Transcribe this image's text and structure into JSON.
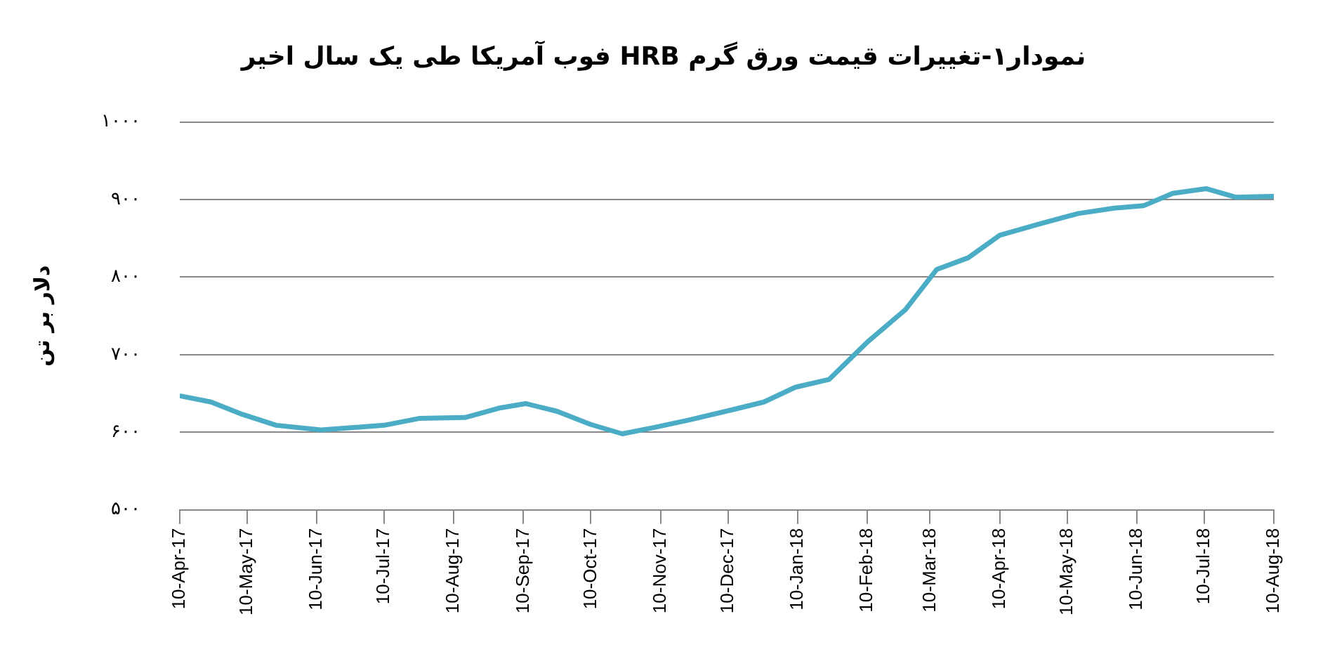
{
  "chart_data": {
    "type": "line",
    "title": "نمودار۱-تغییرات قیمت ورق گرم HRB فوب آمریکا طی یک سال اخیر",
    "ylabel": "دلار بر تن",
    "x": [
      "2017-04-10",
      "2017-04-24",
      "2017-05-08",
      "2017-05-23",
      "2017-06-12",
      "2017-07-10",
      "2017-07-26",
      "2017-08-15",
      "2017-08-30",
      "2017-09-11",
      "2017-09-25",
      "2017-10-10",
      "2017-10-24",
      "2017-11-07",
      "2017-11-23",
      "2017-12-12",
      "2017-12-26",
      "2018-01-09",
      "2018-01-24",
      "2018-02-10",
      "2018-02-27",
      "2018-03-13",
      "2018-03-27",
      "2018-04-10",
      "2018-04-27",
      "2018-05-15",
      "2018-05-31",
      "2018-06-13",
      "2018-06-26",
      "2018-07-11",
      "2018-07-24",
      "2018-08-10"
    ],
    "series": [
      {
        "color": "#4bacc6",
        "values": [
          647,
          639,
          623,
          609,
          603,
          609,
          618,
          619,
          631,
          637,
          627,
          610,
          598,
          606,
          616,
          629,
          639,
          658,
          668,
          716,
          758,
          810,
          825,
          854,
          868,
          882,
          889,
          892,
          908,
          914,
          903,
          904
        ]
      }
    ],
    "xlim": [
      "2017-04-10",
      "2018-08-10"
    ],
    "xticks": [
      {
        "value": "2017-04-10",
        "label": "10-Apr-17"
      },
      {
        "value": "2017-05-10",
        "label": "10-May-17"
      },
      {
        "value": "2017-06-10",
        "label": "10-Jun-17"
      },
      {
        "value": "2017-07-10",
        "label": "10-Jul-17"
      },
      {
        "value": "2017-08-10",
        "label": "10-Aug-17"
      },
      {
        "value": "2017-09-10",
        "label": "10-Sep-17"
      },
      {
        "value": "2017-10-10",
        "label": "10-Oct-17"
      },
      {
        "value": "2017-11-10",
        "label": "10-Nov-17"
      },
      {
        "value": "2017-12-10",
        "label": "10-Dec-17"
      },
      {
        "value": "2018-01-10",
        "label": "10-Jan-18"
      },
      {
        "value": "2018-02-10",
        "label": "10-Feb-18"
      },
      {
        "value": "2018-03-10",
        "label": "10-Mar-18"
      },
      {
        "value": "2018-04-10",
        "label": "10-Apr-18"
      },
      {
        "value": "2018-05-10",
        "label": "10-May-18"
      },
      {
        "value": "2018-06-10",
        "label": "10-Jun-18"
      },
      {
        "value": "2018-07-10",
        "label": "10-Jul-18"
      },
      {
        "value": "2018-08-10",
        "label": "10-Aug-18"
      }
    ],
    "ylim": [
      500,
      1000
    ],
    "yticks": [
      {
        "value": 500,
        "label": "۵۰۰"
      },
      {
        "value": 600,
        "label": "۶۰۰"
      },
      {
        "value": 700,
        "label": "۷۰۰"
      },
      {
        "value": 800,
        "label": "۸۰۰"
      },
      {
        "value": 900,
        "label": "۹۰۰"
      },
      {
        "value": 1000,
        "label": "۱۰۰۰"
      }
    ],
    "grid": "y",
    "legend": false,
    "marker": "none",
    "line_style": "solid"
  }
}
